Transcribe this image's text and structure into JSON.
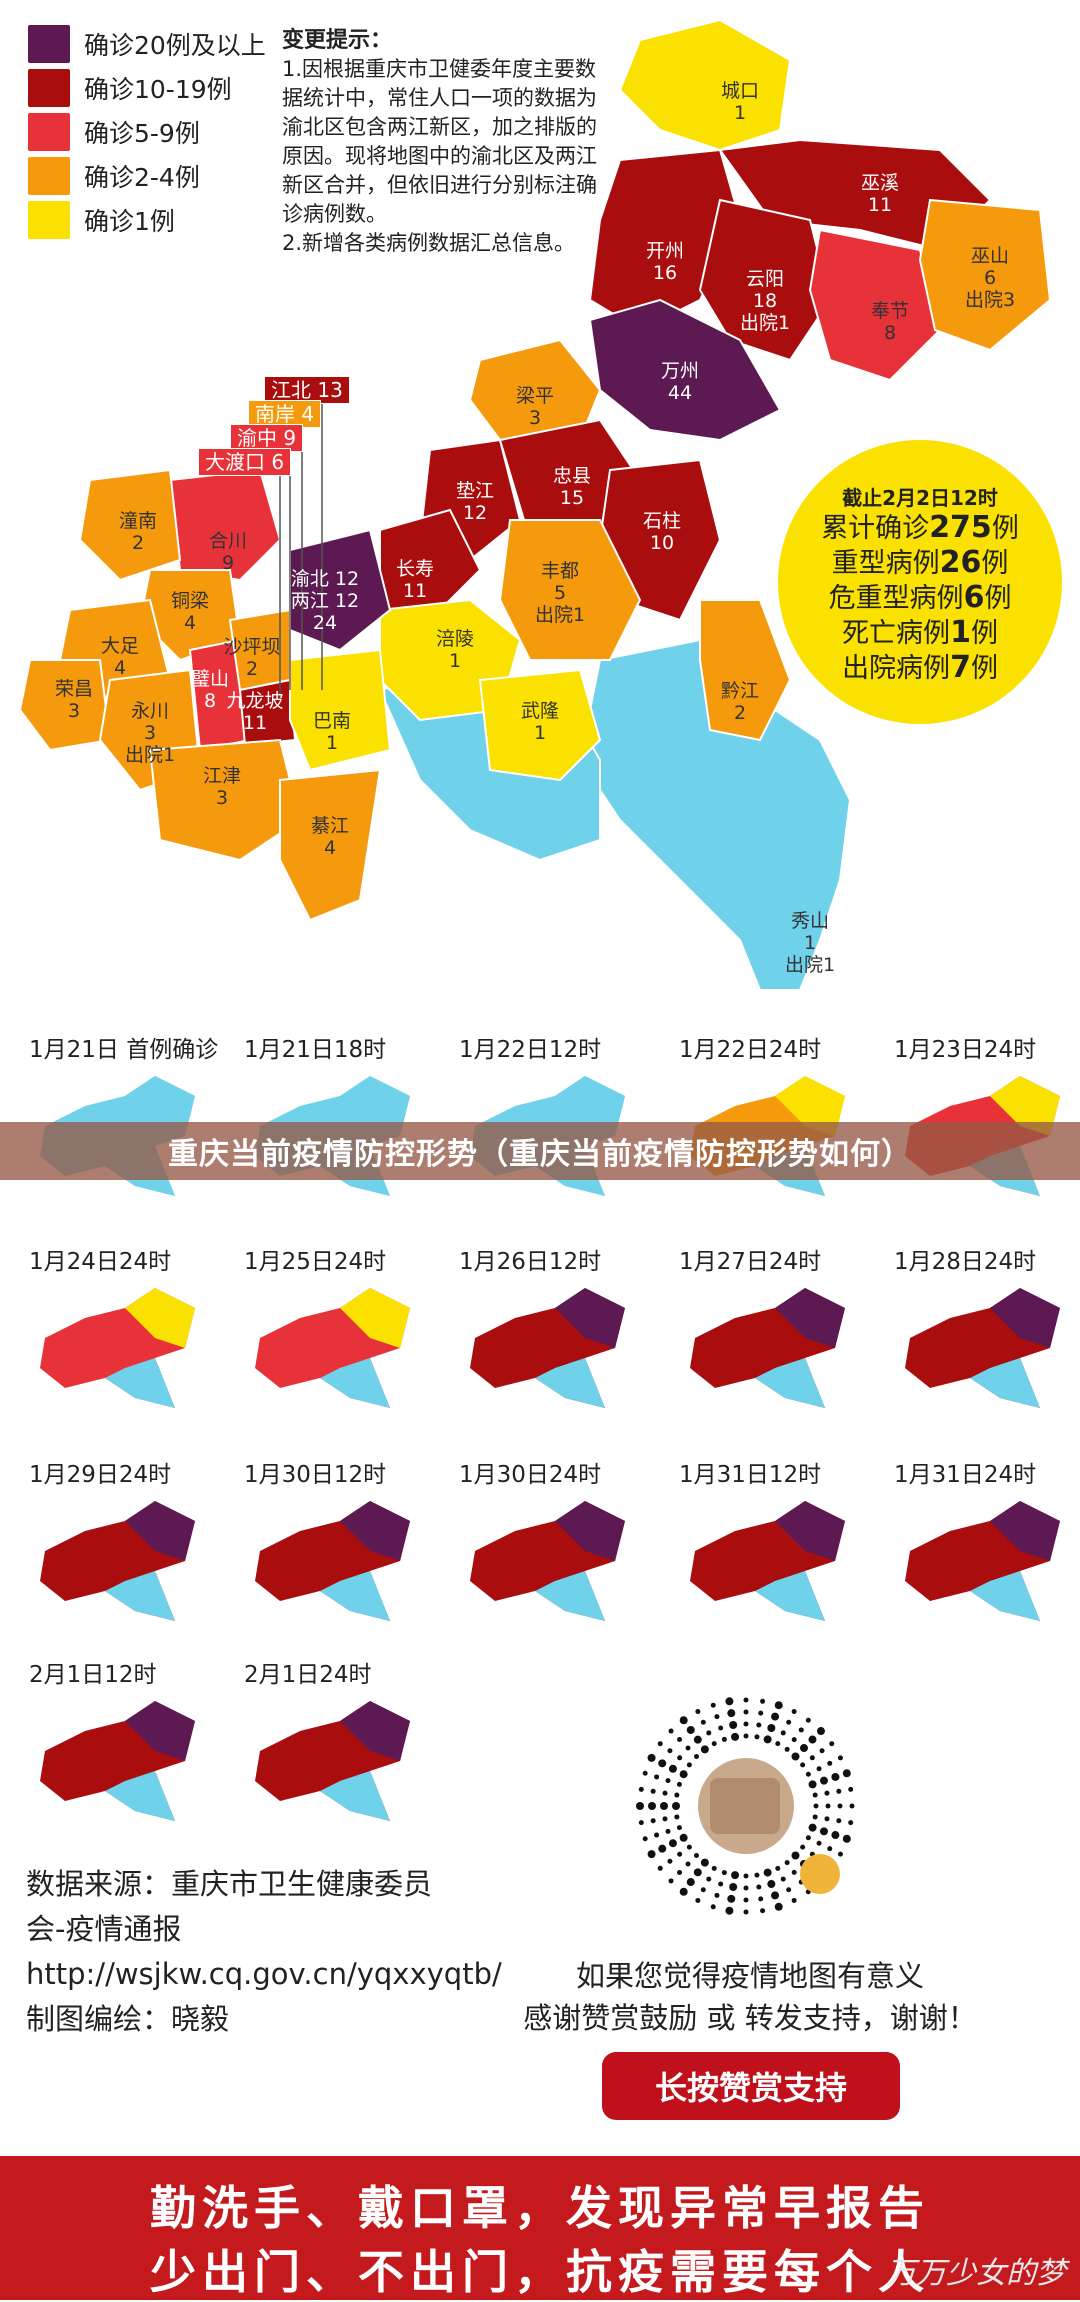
{
  "legend": [
    {
      "label": "确诊20例及以上",
      "color": "#5d1a52"
    },
    {
      "label": "确诊10-19例",
      "color": "#a90d0e"
    },
    {
      "label": "确诊5-9例",
      "color": "#e8323a"
    },
    {
      "label": "确诊2-4例",
      "color": "#f59a0c"
    },
    {
      "label": "确诊1例",
      "color": "#fbe100"
    }
  ],
  "notice": {
    "title": "变更提示：",
    "line1": "1.因根据重庆市卫健委年度主要数据统计中，常住人口一项的数据为渝北区包含两江新区，加之排版的原因。现将地图中的渝北区及两江新区合并，但依旧进行分别标注确诊病例数。",
    "line2": "2.新增各类病例数据汇总信息。"
  },
  "districts": [
    {
      "name": "城口",
      "value": "1"
    },
    {
      "name": "巫溪",
      "value": "11"
    },
    {
      "name": "开州",
      "value": "16"
    },
    {
      "name": "云阳",
      "value": "18",
      "extra": "出院1"
    },
    {
      "name": "奉节",
      "value": "8"
    },
    {
      "name": "巫山",
      "value": "6",
      "extra": "出院3"
    },
    {
      "name": "万州",
      "value": "44"
    },
    {
      "name": "梁平",
      "value": "3"
    },
    {
      "name": "垫江",
      "value": "12"
    },
    {
      "name": "忠县",
      "value": "15"
    },
    {
      "name": "石柱",
      "value": "10"
    },
    {
      "name": "潼南",
      "value": "2"
    },
    {
      "name": "合川",
      "value": "9"
    },
    {
      "name": "铜梁",
      "value": "4"
    },
    {
      "name": "大足",
      "value": "4"
    },
    {
      "name": "荣昌",
      "value": "3"
    },
    {
      "name": "永川",
      "value": "3",
      "extra": "出院1"
    },
    {
      "name": "璧山",
      "value": "8"
    },
    {
      "name": "沙坪坝",
      "value": "2"
    },
    {
      "name": "九龙坡",
      "value": "11"
    },
    {
      "name": "渝北 12",
      "value": "两江 12",
      "extra": "24"
    },
    {
      "name": "长寿",
      "value": "11"
    },
    {
      "name": "丰都",
      "value": "5",
      "extra": "出院1"
    },
    {
      "name": "涪陵",
      "value": "1"
    },
    {
      "name": "武隆",
      "value": "1"
    },
    {
      "name": "黔江",
      "value": "2"
    },
    {
      "name": "巴南",
      "value": "1"
    },
    {
      "name": "江津",
      "value": "3"
    },
    {
      "name": "綦江",
      "value": "4"
    },
    {
      "name": "秀山",
      "value": "1",
      "extra": "出院1"
    }
  ],
  "tags": [
    {
      "text": "江北 13",
      "color": "#a90d0e"
    },
    {
      "text": "南岸 4",
      "color": "#f59a0c"
    },
    {
      "text": "渝中 9",
      "color": "#e8323a"
    },
    {
      "text": "大渡口 6",
      "color": "#e8323a"
    }
  ],
  "summary": {
    "title": "截止2月2日12时",
    "lines": [
      {
        "pre": "累计确诊",
        "num": "275",
        "post": "例"
      },
      {
        "pre": "重型病例",
        "num": "26",
        "post": "例"
      },
      {
        "pre": "危重型病例",
        "num": "6",
        "post": "例"
      },
      {
        "pre": "死亡病例",
        "num": "1",
        "post": "例"
      },
      {
        "pre": "出院病例",
        "num": "7",
        "post": "例"
      }
    ]
  },
  "timeline": [
    "1月21日 首例确诊",
    "1月21日18时",
    "1月22日12时",
    "1月22日24时",
    "1月23日24时",
    "1月24日24时",
    "1月25日24时",
    "1月26日12时",
    "1月27日24时",
    "1月28日24时",
    "1月29日24时",
    "1月30日12时",
    "1月30日24时",
    "1月31日12时",
    "1月31日24时",
    "2月1日12时",
    "2月1日24时"
  ],
  "banner": "重庆当前疫情防控形势（重庆当前疫情防控形势如何）",
  "source": {
    "line1": "数据来源：重庆市卫生健康委员会-疫情通报",
    "line2": "http://wsjkw.cq.gov.cn/yqxxyqtb/",
    "line3": "制图编绘：晓毅"
  },
  "thanks": {
    "line1": "如果您觉得疫情地图有意义",
    "line2": "感谢赞赏鼓励 或 转发支持，谢谢！"
  },
  "button": "长按赞赏支持",
  "footer": {
    "line1": "勤洗手、戴口罩，发现异常早报告",
    "line2": "少出门、不出门，抗疫需要每个人"
  },
  "watermark": "万万少女的梦"
}
